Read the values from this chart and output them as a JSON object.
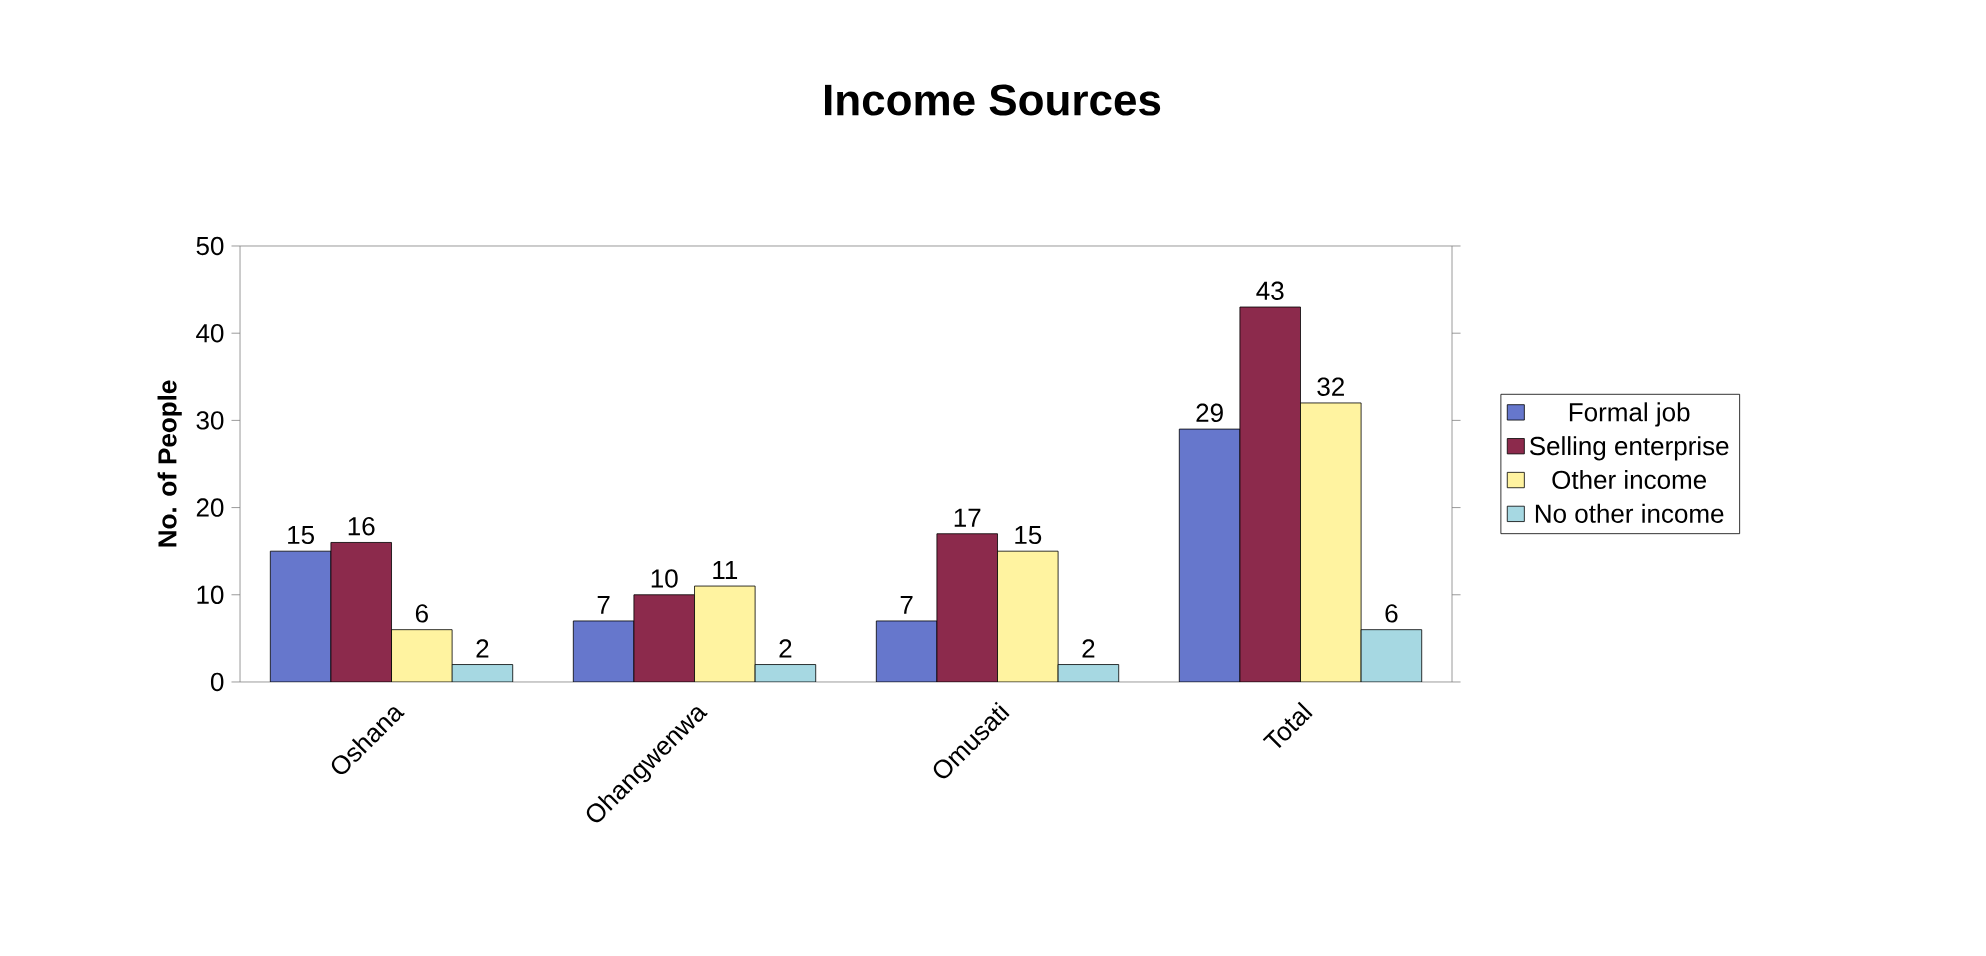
{
  "chart_data": {
    "type": "bar",
    "title": "Income Sources",
    "ylabel": "No. of People",
    "categories": [
      "Oshana",
      "Ohangwenwa",
      "Omusati",
      "Total"
    ],
    "series": [
      {
        "name": "Formal job",
        "color": "#6677cc",
        "values": [
          15,
          7,
          7,
          29
        ]
      },
      {
        "name": "Selling enterprise",
        "color": "#8c2a4c",
        "values": [
          16,
          10,
          17,
          43
        ]
      },
      {
        "name": "Other income",
        "color": "#fff3a0",
        "values": [
          6,
          11,
          15,
          32
        ]
      },
      {
        "name": "No other income",
        "color": "#a6d8e2",
        "values": [
          2,
          2,
          2,
          6
        ]
      }
    ],
    "ylim": [
      0,
      50
    ],
    "yticks": [
      0,
      10,
      20,
      30,
      40,
      50
    ],
    "data_labels": true,
    "legend": "right"
  }
}
